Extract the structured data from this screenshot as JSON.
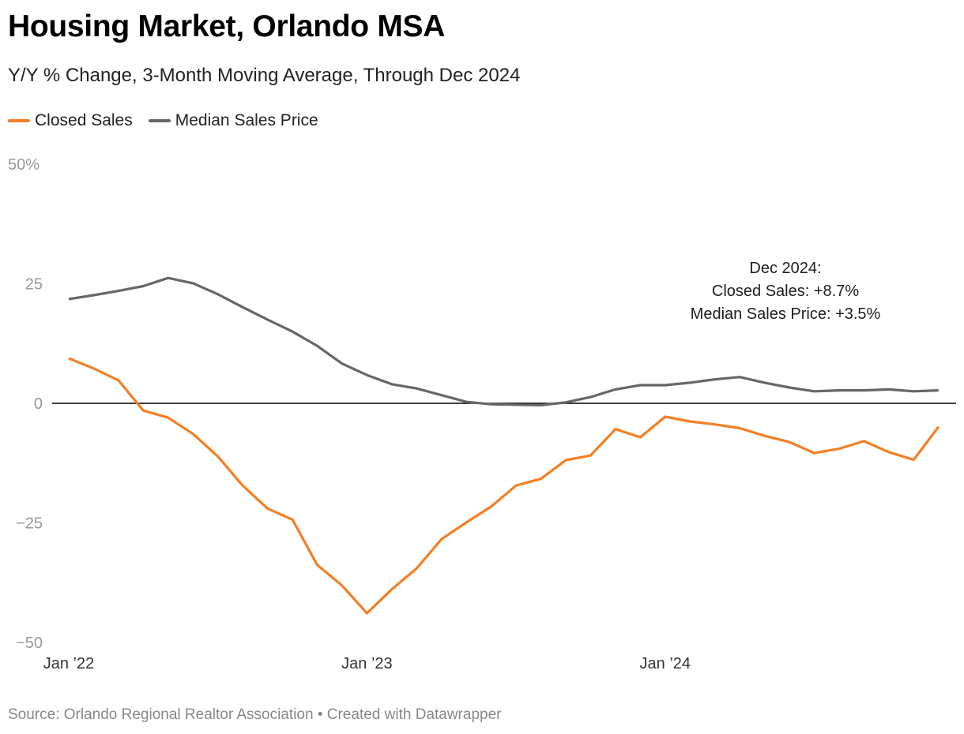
{
  "header": {
    "title": "Housing Market, Orlando MSA",
    "subtitle": "Y/Y % Change, 3-Month Moving Average, Through Dec 2024"
  },
  "legend": [
    {
      "label": "Closed Sales",
      "color": "#f47f24"
    },
    {
      "label": "Median Sales Price",
      "color": "#666666"
    }
  ],
  "footer": {
    "text": "Source: Orlando Regional Realtor Association • Created with Datawrapper"
  },
  "chart_data": {
    "type": "line",
    "title": "Housing Market, Orlando MSA",
    "subtitle": "Y/Y % Change, 3-Month Moving Average, Through Dec 2024",
    "xlabel": "",
    "ylabel": "",
    "ylim": [
      -50,
      50
    ],
    "y_ticks": [
      50,
      25,
      0,
      -25,
      -50
    ],
    "y_tick_labels": [
      "50%",
      "25",
      "0",
      "−25",
      "−50"
    ],
    "x_tick_labels": [
      "Jan ’22",
      "Jan ’23",
      "Jan ’24"
    ],
    "x_tick_indices": [
      0,
      12,
      24
    ],
    "grid": false,
    "zero_line": true,
    "legend_position": "top-left",
    "x": [
      "Jan 2022",
      "Feb 2022",
      "Mar 2022",
      "Apr 2022",
      "May 2022",
      "Jun 2022",
      "Jul 2022",
      "Aug 2022",
      "Sep 2022",
      "Oct 2022",
      "Nov 2022",
      "Dec 2022",
      "Jan 2023",
      "Feb 2023",
      "Mar 2023",
      "Apr 2023",
      "May 2023",
      "Jun 2023",
      "Jul 2023",
      "Aug 2023",
      "Sep 2023",
      "Oct 2023",
      "Nov 2023",
      "Dec 2023",
      "Jan 2024",
      "Feb 2024",
      "Mar 2024",
      "Apr 2024",
      "May 2024",
      "Jun 2024",
      "Jul 2024",
      "Aug 2024",
      "Sep 2024",
      "Oct 2024",
      "Nov 2024",
      "Dec 2024"
    ],
    "series": [
      {
        "name": "Closed Sales",
        "color": "#f47f24",
        "values": [
          9.4,
          7.3,
          4.8,
          -1.5,
          -3.0,
          -6.4,
          -11.1,
          -17.2,
          -22.0,
          -24.3,
          -33.8,
          -38.1,
          -43.9,
          -38.9,
          -34.5,
          -28.4,
          -24.9,
          -21.6,
          -17.2,
          -15.8,
          -11.9,
          -10.9,
          -5.4,
          -7.1,
          -2.8,
          -3.8,
          -4.4,
          -5.2,
          -6.8,
          -8.1,
          -10.4,
          -9.5,
          -7.9,
          -10.2,
          -11.8,
          -4.9
        ]
      },
      {
        "name": "Median Sales Price",
        "color": "#666666",
        "values": [
          21.8,
          22.6,
          23.5,
          24.5,
          26.2,
          25.1,
          22.8,
          20.1,
          17.5,
          15.0,
          12.0,
          8.3,
          5.9,
          4.0,
          3.1,
          1.7,
          0.3,
          -0.2,
          -0.3,
          -0.4,
          0.2,
          1.3,
          2.9,
          3.8,
          3.8,
          4.3,
          5.0,
          5.5,
          4.3,
          3.3,
          2.5,
          2.7,
          2.7,
          2.9,
          2.5,
          2.7
        ]
      }
    ],
    "annotations": [
      {
        "lines": [
          "Dec 2024:",
          "Closed Sales: +8.7%",
          "Median Sales Price: +3.5%"
        ],
        "anchor": "top-right"
      }
    ]
  }
}
